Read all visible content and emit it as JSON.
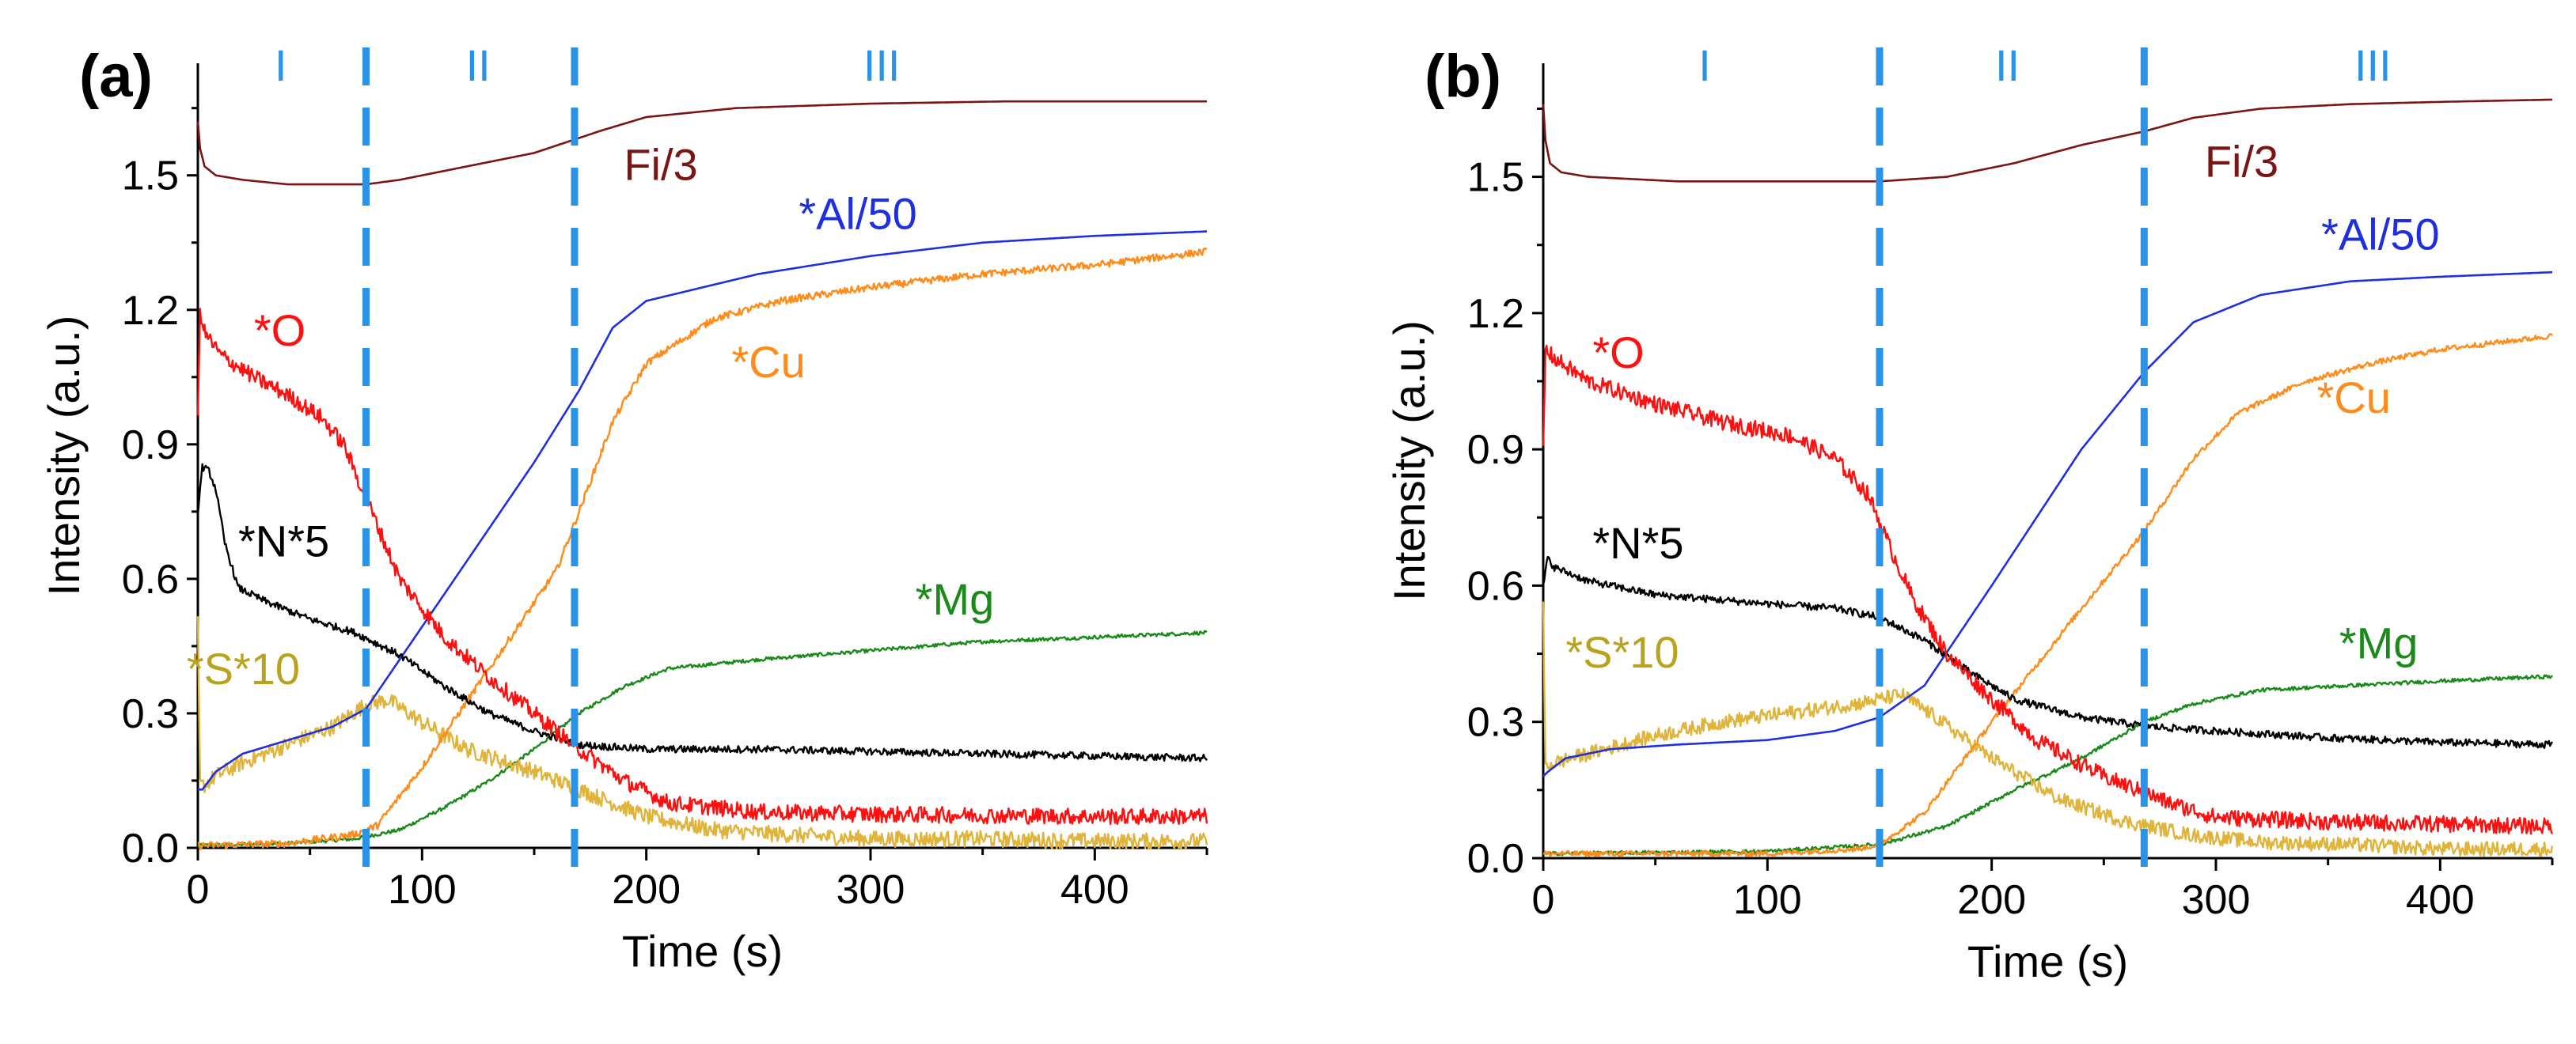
{
  "colors": {
    "Fi": "#7b1414",
    "Al": "#1f2fe0",
    "Cu": "#ff8c1a",
    "O": "#ff0f0f",
    "N": "#000000",
    "Mg": "#1a8a1a",
    "S": "#e0b43a",
    "S_label": "#b8a21e",
    "stage": "#2a93e8",
    "axis": "#000000"
  },
  "chart_data": [
    {
      "type": "line",
      "panel_label": "(a)",
      "xlabel": "Time (s)",
      "ylabel": "Intensity (a.u.)",
      "xlim": [
        0,
        450
      ],
      "ylim": [
        0,
        1.75
      ],
      "xticks": [
        0,
        100,
        200,
        300,
        400
      ],
      "xtick_labels": [
        "0",
        "100",
        "200",
        "300",
        "400"
      ],
      "yticks": [
        0.0,
        0.3,
        0.6,
        0.9,
        1.2,
        1.5
      ],
      "ytick_labels": [
        "0.0",
        "0.3",
        "0.6",
        "0.9",
        "1.2",
        "1.5"
      ],
      "stage_boundaries": [
        75,
        168
      ],
      "stages": [
        {
          "label": "I",
          "x": 37
        },
        {
          "label": "II",
          "x": 125
        },
        {
          "label": "III",
          "x": 305
        }
      ],
      "series": [
        {
          "name": "Fi/3",
          "key": "Fi",
          "label_pos": [
            190,
            1.49
          ],
          "noise": 0,
          "x": [
            0,
            1,
            3,
            8,
            20,
            40,
            60,
            75,
            90,
            120,
            150,
            168,
            180,
            200,
            240,
            300,
            360,
            420,
            450
          ],
          "y": [
            1.62,
            1.56,
            1.52,
            1.5,
            1.49,
            1.48,
            1.48,
            1.48,
            1.49,
            1.52,
            1.55,
            1.58,
            1.6,
            1.63,
            1.65,
            1.66,
            1.665,
            1.665,
            1.665
          ]
        },
        {
          "name": "*Al/50",
          "key": "Al",
          "label_pos": [
            268,
            1.38
          ],
          "noise": 0,
          "x": [
            0,
            2,
            8,
            20,
            40,
            60,
            75,
            90,
            120,
            150,
            170,
            185,
            200,
            250,
            300,
            350,
            400,
            450
          ],
          "y": [
            0.13,
            0.13,
            0.17,
            0.21,
            0.24,
            0.27,
            0.31,
            0.42,
            0.64,
            0.86,
            1.02,
            1.16,
            1.22,
            1.28,
            1.32,
            1.35,
            1.365,
            1.375
          ]
        },
        {
          "name": "*Cu",
          "key": "Cu",
          "label_pos": [
            238,
            1.05
          ],
          "noise": 0.008,
          "x": [
            0,
            40,
            70,
            80,
            100,
            130,
            160,
            170,
            185,
            200,
            230,
            260,
            300,
            350,
            400,
            450
          ],
          "y": [
            0.005,
            0.01,
            0.03,
            0.05,
            0.18,
            0.4,
            0.62,
            0.75,
            0.95,
            1.08,
            1.18,
            1.22,
            1.25,
            1.28,
            1.3,
            1.33
          ]
        },
        {
          "name": "*O",
          "key": "O",
          "label_pos": [
            25,
            1.12
          ],
          "noise": 0.018,
          "x": [
            0,
            1,
            3,
            10,
            25,
            40,
            55,
            65,
            75,
            90,
            110,
            130,
            150,
            170,
            190,
            210,
            250,
            300,
            400,
            450
          ],
          "y": [
            0.95,
            1.2,
            1.15,
            1.1,
            1.05,
            1.01,
            0.96,
            0.9,
            0.78,
            0.6,
            0.47,
            0.38,
            0.3,
            0.22,
            0.15,
            0.1,
            0.08,
            0.075,
            0.07,
            0.07
          ]
        },
        {
          "name": "*N*5",
          "key": "N",
          "label_pos": [
            18,
            0.65
          ],
          "noise": 0.008,
          "x": [
            0,
            2,
            5,
            8,
            12,
            18,
            30,
            50,
            70,
            90,
            110,
            130,
            150,
            170,
            200,
            250,
            300,
            400,
            450
          ],
          "y": [
            0.75,
            0.85,
            0.84,
            0.8,
            0.68,
            0.58,
            0.55,
            0.51,
            0.48,
            0.43,
            0.36,
            0.3,
            0.26,
            0.23,
            0.22,
            0.22,
            0.215,
            0.205,
            0.2
          ]
        },
        {
          "name": "*Mg",
          "key": "Mg",
          "label_pos": [
            320,
            0.52
          ],
          "noise": 0.004,
          "x": [
            0,
            40,
            70,
            90,
            110,
            130,
            150,
            170,
            190,
            210,
            250,
            300,
            350,
            400,
            450
          ],
          "y": [
            0.005,
            0.01,
            0.02,
            0.04,
            0.09,
            0.15,
            0.22,
            0.3,
            0.36,
            0.4,
            0.42,
            0.44,
            0.46,
            0.47,
            0.48
          ]
        },
        {
          "name": "*S*10",
          "key": "S",
          "label_pos": [
            -5,
            0.365
          ],
          "noise": 0.018,
          "x": [
            0,
            1,
            3,
            8,
            20,
            40,
            60,
            75,
            85,
            100,
            120,
            150,
            170,
            200,
            230,
            260,
            300,
            350,
            400,
            450
          ],
          "y": [
            0.5,
            0.14,
            0.14,
            0.16,
            0.19,
            0.23,
            0.27,
            0.32,
            0.33,
            0.28,
            0.22,
            0.17,
            0.13,
            0.07,
            0.04,
            0.03,
            0.02,
            0.02,
            0.015,
            0.015
          ]
        }
      ]
    },
    {
      "type": "line",
      "panel_label": "(b)",
      "xlabel": "Time (s)",
      "ylabel": "Intensity (a.u.)",
      "xlim": [
        0,
        450
      ],
      "ylim": [
        0,
        1.75
      ],
      "xticks": [
        0,
        100,
        200,
        300,
        400
      ],
      "xtick_labels": [
        "0",
        "100",
        "200",
        "300",
        "400"
      ],
      "yticks": [
        0.0,
        0.3,
        0.6,
        0.9,
        1.2,
        1.5
      ],
      "ytick_labels": [
        "0.0",
        "0.3",
        "0.6",
        "0.9",
        "1.2",
        "1.5"
      ],
      "stage_boundaries": [
        150,
        268
      ],
      "stages": [
        {
          "label": "I",
          "x": 72
        },
        {
          "label": "II",
          "x": 207
        },
        {
          "label": "III",
          "x": 370
        }
      ],
      "series": [
        {
          "name": "Fi/3",
          "key": "Fi",
          "label_pos": [
            295,
            1.5
          ],
          "noise": 0,
          "x": [
            0,
            1,
            3,
            8,
            20,
            60,
            100,
            150,
            180,
            210,
            240,
            268,
            290,
            320,
            360,
            400,
            450
          ],
          "y": [
            1.66,
            1.58,
            1.53,
            1.51,
            1.5,
            1.49,
            1.49,
            1.49,
            1.5,
            1.53,
            1.57,
            1.6,
            1.63,
            1.65,
            1.66,
            1.665,
            1.67
          ]
        },
        {
          "name": "*Al/50",
          "key": "Al",
          "label_pos": [
            347,
            1.34
          ],
          "noise": 0,
          "x": [
            0,
            2,
            10,
            30,
            60,
            100,
            130,
            150,
            170,
            200,
            240,
            268,
            290,
            320,
            360,
            400,
            450
          ],
          "y": [
            0.18,
            0.19,
            0.22,
            0.24,
            0.25,
            0.26,
            0.28,
            0.31,
            0.38,
            0.6,
            0.9,
            1.07,
            1.18,
            1.24,
            1.27,
            1.28,
            1.29
          ]
        },
        {
          "name": "*Cu",
          "key": "Cu",
          "label_pos": [
            345,
            0.98
          ],
          "noise": 0.006,
          "x": [
            0,
            100,
            140,
            150,
            170,
            200,
            240,
            268,
            290,
            310,
            340,
            370,
            400,
            450
          ],
          "y": [
            0.01,
            0.01,
            0.02,
            0.03,
            0.1,
            0.3,
            0.55,
            0.72,
            0.88,
            0.98,
            1.05,
            1.09,
            1.12,
            1.15
          ]
        },
        {
          "name": "*O",
          "key": "O",
          "label_pos": [
            22,
            1.08
          ],
          "noise": 0.018,
          "x": [
            0,
            1,
            5,
            20,
            50,
            80,
            110,
            130,
            145,
            155,
            165,
            180,
            200,
            220,
            250,
            280,
            300,
            350,
            400,
            450
          ],
          "y": [
            0.9,
            1.12,
            1.1,
            1.05,
            1.0,
            0.96,
            0.93,
            0.88,
            0.8,
            0.68,
            0.57,
            0.45,
            0.35,
            0.26,
            0.18,
            0.12,
            0.09,
            0.08,
            0.075,
            0.07
          ]
        },
        {
          "name": "*N*5",
          "key": "N",
          "label_pos": [
            22,
            0.66
          ],
          "noise": 0.008,
          "x": [
            0,
            2,
            5,
            20,
            50,
            100,
            130,
            150,
            170,
            190,
            210,
            240,
            270,
            300,
            350,
            400,
            450
          ],
          "y": [
            0.6,
            0.66,
            0.64,
            0.61,
            0.58,
            0.56,
            0.55,
            0.53,
            0.48,
            0.41,
            0.35,
            0.31,
            0.29,
            0.28,
            0.265,
            0.255,
            0.25
          ]
        },
        {
          "name": "*Mg",
          "key": "Mg",
          "label_pos": [
            355,
            0.44
          ],
          "noise": 0.004,
          "x": [
            0,
            100,
            150,
            180,
            210,
            240,
            268,
            290,
            320,
            360,
            400,
            450
          ],
          "y": [
            0.01,
            0.015,
            0.03,
            0.07,
            0.15,
            0.22,
            0.3,
            0.34,
            0.37,
            0.38,
            0.39,
            0.4
          ]
        },
        {
          "name": "*S*10",
          "key": "S",
          "label_pos": [
            10,
            0.42
          ],
          "noise": 0.016,
          "x": [
            0,
            1,
            5,
            20,
            50,
            80,
            110,
            140,
            150,
            160,
            175,
            200,
            230,
            260,
            290,
            320,
            360,
            400,
            450
          ],
          "y": [
            0.55,
            0.2,
            0.21,
            0.23,
            0.27,
            0.3,
            0.32,
            0.34,
            0.35,
            0.36,
            0.31,
            0.22,
            0.13,
            0.08,
            0.05,
            0.035,
            0.03,
            0.02,
            0.02
          ]
        }
      ]
    }
  ]
}
